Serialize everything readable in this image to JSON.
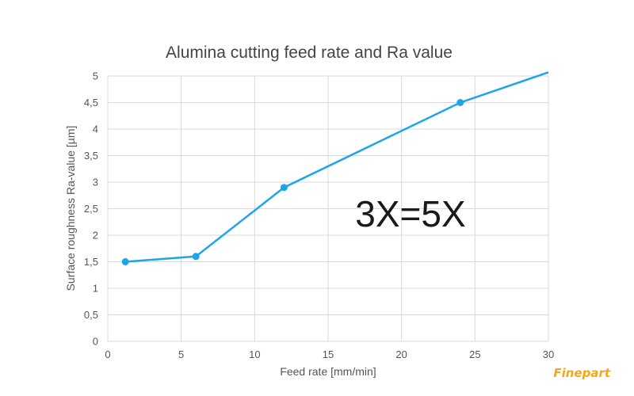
{
  "chart_data": {
    "type": "line",
    "title": "Alumina cutting feed rate and Ra value",
    "xlabel": "Feed rate [mm/min]",
    "ylabel": "Surface roughness Ra-value [µm]",
    "xlim": [
      0,
      30
    ],
    "ylim": [
      0,
      5
    ],
    "xticks": [
      "0",
      "5",
      "10",
      "15",
      "20",
      "25",
      "30"
    ],
    "yticks": [
      "0",
      "0,5",
      "1",
      "1,5",
      "2",
      "2,5",
      "3",
      "3,5",
      "4",
      "4,5",
      "5"
    ],
    "grid": true,
    "series": [
      {
        "points": [
          {
            "x": 1.2,
            "y": 1.5
          },
          {
            "x": 6,
            "y": 1.6
          },
          {
            "x": 12,
            "y": 2.9
          },
          {
            "x": 24,
            "y": 4.5
          },
          {
            "x": 30,
            "y": 5.07
          }
        ],
        "marked_points": [
          0,
          1,
          2,
          3
        ],
        "color": "#1ea5e9"
      }
    ],
    "annotation": "3X=5X"
  },
  "watermark": "Finepart"
}
